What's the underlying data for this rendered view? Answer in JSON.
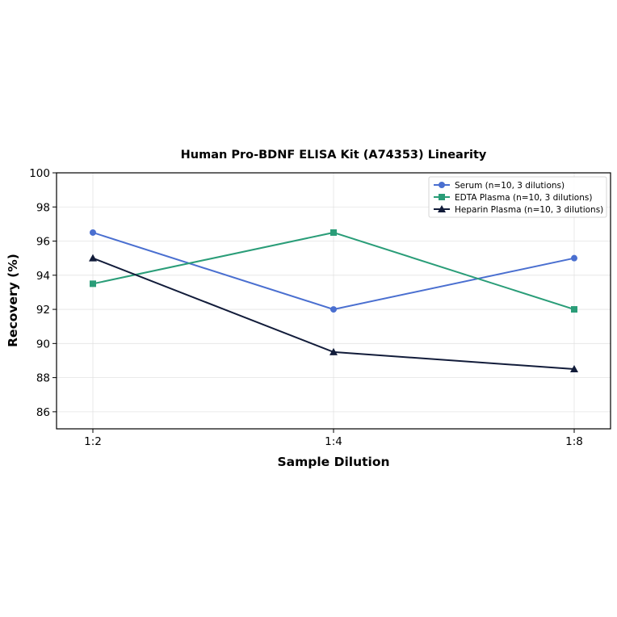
{
  "chart_data": {
    "type": "line",
    "title": "Human Pro-BDNF ELISA Kit (A74353) Linearity",
    "xlabel": "Sample Dilution",
    "ylabel": "Recovery (%)",
    "categories": [
      "1:2",
      "1:4",
      "1:8"
    ],
    "ylim": [
      85,
      100
    ],
    "yticks": [
      86,
      88,
      90,
      92,
      94,
      96,
      98,
      100
    ],
    "grid": true,
    "legend_position": "top-right",
    "series": [
      {
        "name": "Serum (n=10, 3 dilutions)",
        "values": [
          96.5,
          92.0,
          95.0
        ],
        "color": "#4a6fd0",
        "marker": "circle"
      },
      {
        "name": "EDTA Plasma (n=10, 3 dilutions)",
        "values": [
          93.5,
          96.5,
          92.0
        ],
        "color": "#2a9d78",
        "marker": "square"
      },
      {
        "name": "Heparin Plasma (n=10, 3 dilutions)",
        "values": [
          95.0,
          89.5,
          88.5
        ],
        "color": "#121c3a",
        "marker": "triangle"
      }
    ]
  }
}
